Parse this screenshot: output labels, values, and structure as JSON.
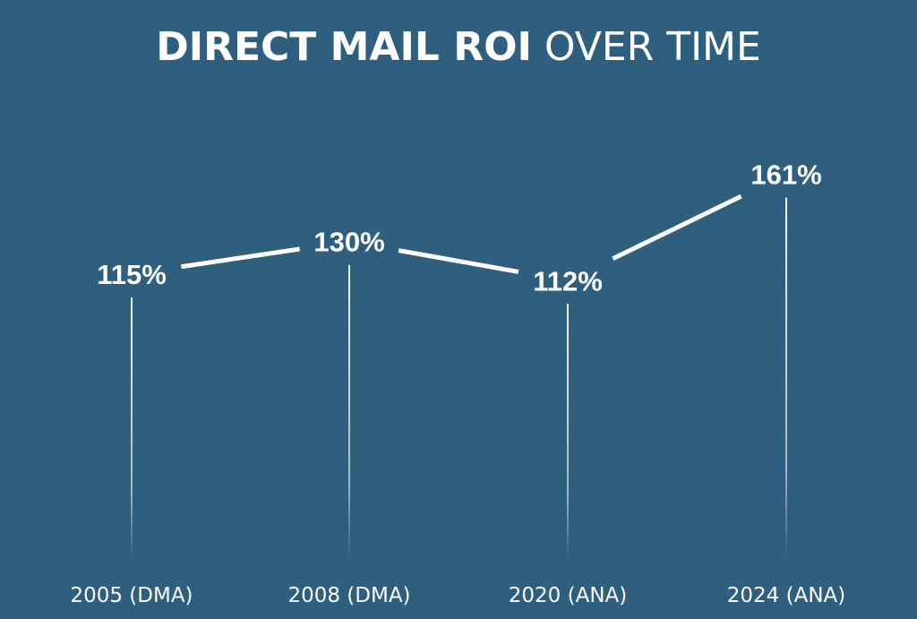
{
  "chart_data": {
    "type": "line",
    "title_bold": "DIRECT MAIL ROI",
    "title_light": "OVER TIME",
    "categories": [
      "2005 (DMA)",
      "2008 (DMA)",
      "2020 (ANA)",
      "2024 (ANA)"
    ],
    "values": [
      115,
      130,
      112,
      161
    ],
    "value_labels": [
      "115%",
      "130%",
      "112%",
      "161%"
    ],
    "xlabel": "",
    "ylabel": "",
    "grid": false,
    "colors": {
      "background": "#2f5f7f",
      "line": "#ffffff",
      "text": "#ffffff"
    }
  }
}
